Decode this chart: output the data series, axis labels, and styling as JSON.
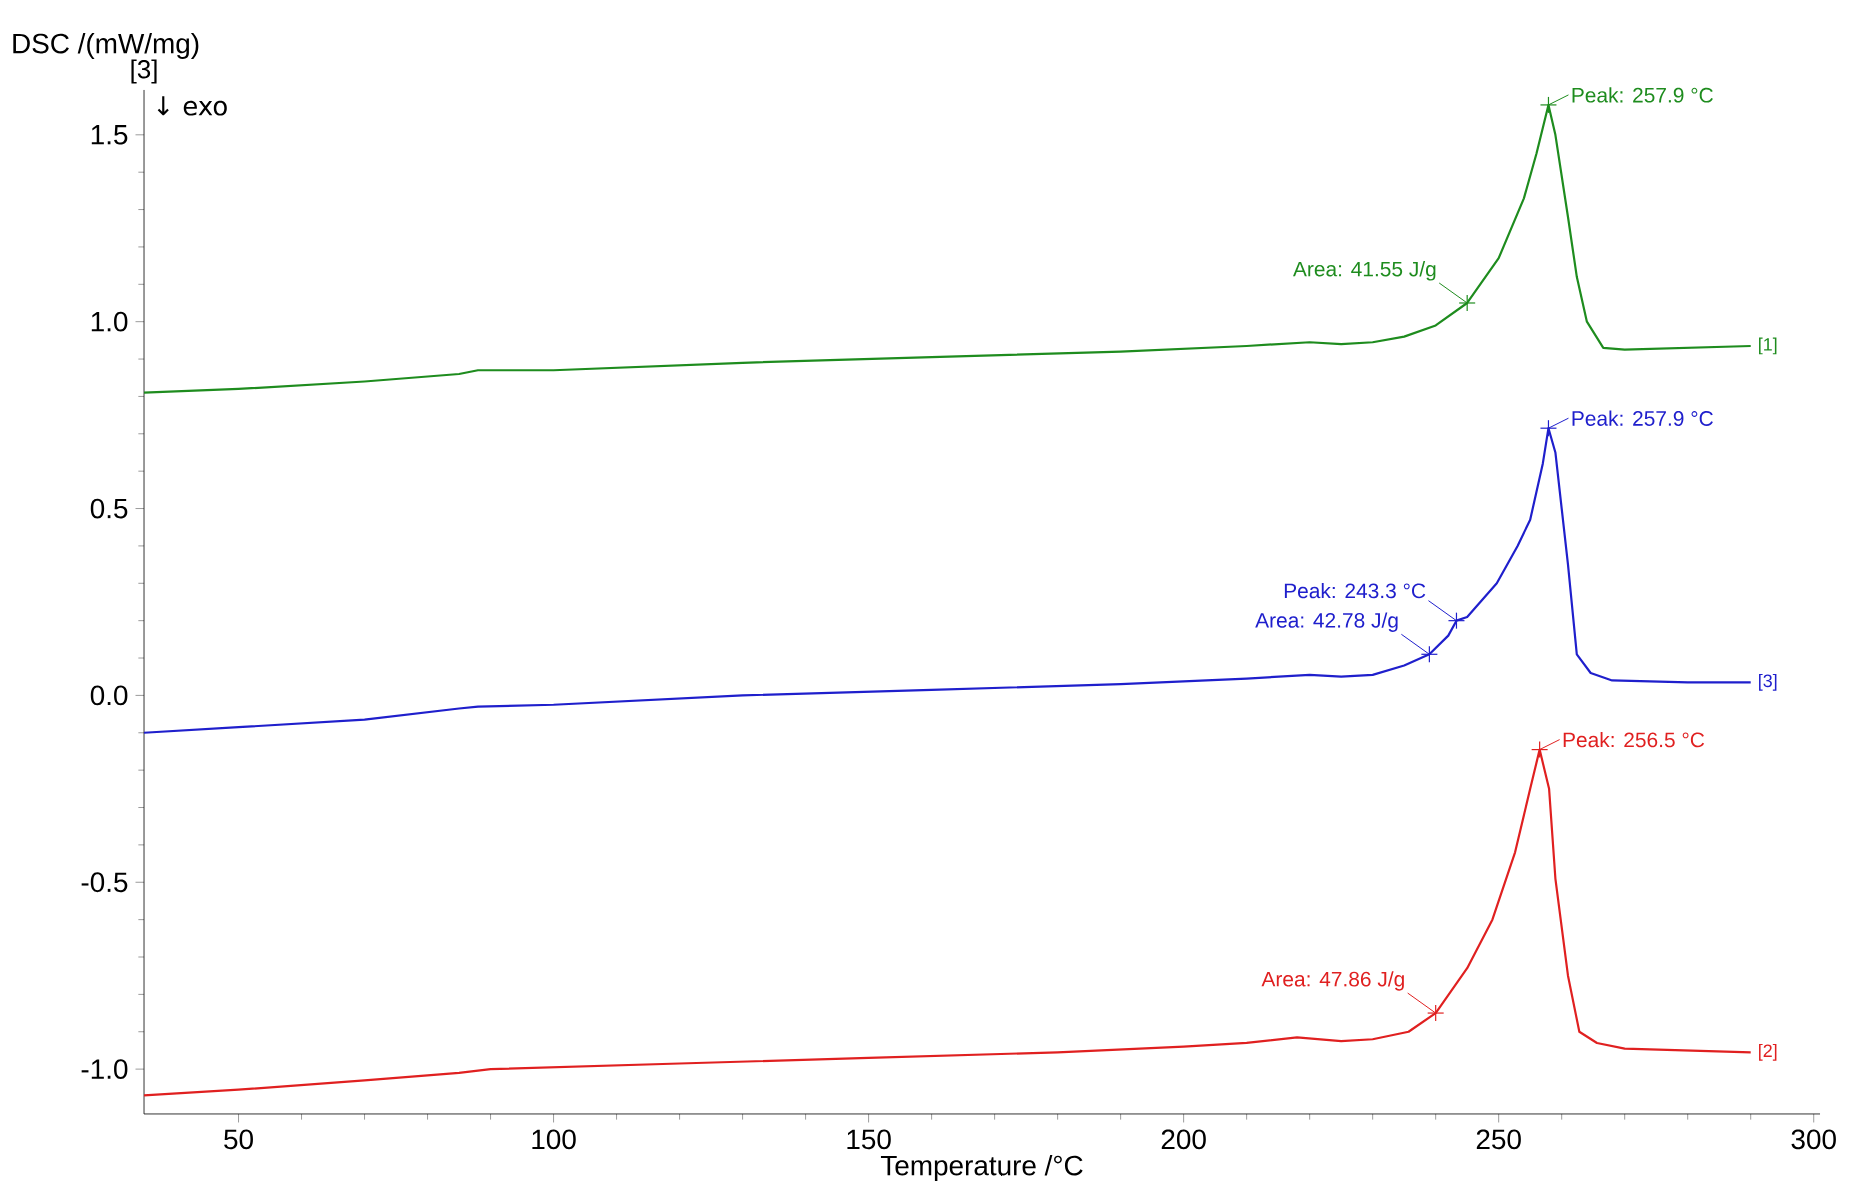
{
  "chart_data": {
    "type": "line",
    "xlabel": "Temperature /°C",
    "ylabel": "DSC /(mW/mg)",
    "xlim": [
      35,
      301
    ],
    "ylim": [
      -1.12,
      1.62
    ],
    "xticks": [
      50,
      100,
      150,
      200,
      250,
      300
    ],
    "yticks": [
      {
        "value": -1.0,
        "label": "-1.0"
      },
      {
        "value": -0.5,
        "label": "-0.5"
      },
      {
        "value": 0.0,
        "label": "0.0"
      },
      {
        "value": 0.5,
        "label": "0.5"
      },
      {
        "value": 1.0,
        "label": "1.0"
      },
      {
        "value": 1.5,
        "label": "1.5"
      }
    ],
    "grid": false,
    "legend": false,
    "line_style": "solid",
    "series": [
      {
        "name": "[1]",
        "color": "#1e8c1e",
        "x": [
          35,
          50,
          70,
          85,
          88,
          100,
          130,
          160,
          190,
          210,
          220,
          225,
          230,
          235,
          240,
          245,
          250,
          254,
          256,
          257.9,
          259,
          261,
          262.4,
          264,
          266.6,
          270,
          280,
          290
        ],
        "values": [
          0.81,
          0.82,
          0.84,
          0.86,
          0.87,
          0.87,
          0.89,
          0.905,
          0.92,
          0.935,
          0.945,
          0.94,
          0.945,
          0.96,
          0.99,
          1.05,
          1.17,
          1.33,
          1.45,
          1.58,
          1.5,
          1.28,
          1.12,
          1.0,
          0.93,
          0.925,
          0.93,
          0.935
        ]
      },
      {
        "name": "[3]",
        "color": "#1f1fcc",
        "x": [
          35,
          50,
          70,
          85,
          88,
          100,
          130,
          160,
          190,
          210,
          220,
          225,
          230,
          235,
          239,
          242,
          243.3,
          245,
          249.7,
          253,
          255,
          257,
          257.9,
          259,
          261,
          262.4,
          264.6,
          268,
          280,
          290
        ],
        "values": [
          -0.1,
          -0.085,
          -0.065,
          -0.035,
          -0.03,
          -0.025,
          0.0,
          0.015,
          0.03,
          0.045,
          0.055,
          0.05,
          0.055,
          0.08,
          0.11,
          0.16,
          0.2,
          0.21,
          0.3,
          0.4,
          0.47,
          0.62,
          0.715,
          0.65,
          0.35,
          0.11,
          0.06,
          0.04,
          0.035,
          0.035
        ]
      },
      {
        "name": "[2]",
        "color": "#e02020",
        "x": [
          35,
          50,
          70,
          85,
          90,
          120,
          150,
          180,
          200,
          210,
          218,
          225,
          230,
          235.7,
          240,
          245,
          249,
          252.6,
          255,
          256.5,
          258,
          259,
          261,
          262.8,
          265.6,
          270,
          280,
          290
        ],
        "values": [
          -1.07,
          -1.055,
          -1.03,
          -1.01,
          -1.0,
          -0.985,
          -0.97,
          -0.955,
          -0.94,
          -0.93,
          -0.915,
          -0.925,
          -0.92,
          -0.9,
          -0.85,
          -0.73,
          -0.6,
          -0.42,
          -0.25,
          -0.145,
          -0.25,
          -0.49,
          -0.75,
          -0.9,
          -0.93,
          -0.945,
          -0.95,
          -0.955
        ]
      }
    ],
    "annotations": [
      "[3]",
      "↓ exo",
      {
        "text": "Peak: 257.9 °C",
        "x": 257.9,
        "y": 1.58
      },
      {
        "text": "Area: 41.55 J/g",
        "x": 245,
        "y": 1.05
      },
      {
        "text": "Peak: 257.9 °C",
        "x": 257.9,
        "y": 0.715
      },
      {
        "text": "Peak: 243.3 °C",
        "x": 243.3,
        "y": 0.2
      },
      {
        "text": "Area: 42.78 J/g",
        "x": 239,
        "y": 0.11
      },
      {
        "text": "Peak: 256.5 °C",
        "x": 256.5,
        "y": -0.145
      },
      {
        "text": "Area: 47.86 J/g",
        "x": 240,
        "y": -0.85
      }
    ]
  }
}
